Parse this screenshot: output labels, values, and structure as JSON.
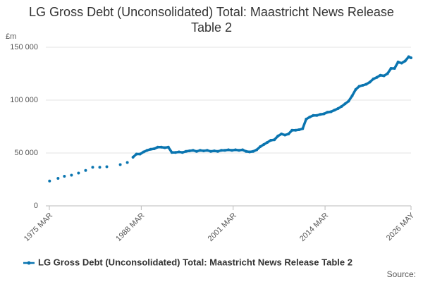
{
  "chart_data": {
    "type": "scatter-line",
    "title": "LG Gross Debt (Unconsolidated) Total: Maastricht News Release Table 2",
    "y_label": "£m",
    "source": "Source:",
    "xlim": [
      1975.17,
      2026.33
    ],
    "xticks": [
      {
        "value": 1975.17,
        "label": "1975 MAR"
      },
      {
        "value": 1988.17,
        "label": "1988 MAR"
      },
      {
        "value": 2001.17,
        "label": "2001 MAR"
      },
      {
        "value": 2014.17,
        "label": "2014 MAR"
      },
      {
        "value": 2026.33,
        "label": "2026 MAY"
      }
    ],
    "ylim": [
      0,
      150000
    ],
    "yticks": [
      0,
      {
        "value": 50000,
        "label": "50 000"
      },
      {
        "value": 100000,
        "label": "100 000"
      },
      {
        "value": 150000,
        "label": "150 000"
      }
    ],
    "grid": true,
    "legend": "bottom",
    "x": [
      1975.2,
      1976.4,
      1977.3,
      1978.3,
      1979.3,
      1980.3,
      1981.3,
      1982.3,
      1983.3,
      1985.2,
      1986.2,
      1987.0,
      1987.5,
      1988.0,
      1988.5,
      1989.0,
      1989.5,
      1990.0,
      1990.5,
      1991.0,
      1991.5,
      1992.0,
      1992.5,
      1993.0,
      1993.5,
      1994.0,
      1994.5,
      1995.0,
      1995.5,
      1996.0,
      1996.5,
      1997.0,
      1997.5,
      1998.0,
      1998.5,
      1999.0,
      1999.5,
      2000.0,
      2000.5,
      2001.0,
      2001.5,
      2002.0,
      2002.5,
      2003.0,
      2003.5,
      2004.0,
      2004.5,
      2005.0,
      2005.5,
      2006.0,
      2006.5,
      2007.0,
      2007.5,
      2008.0,
      2008.5,
      2009.0,
      2009.5,
      2010.0,
      2010.5,
      2011.0,
      2011.5,
      2012.0,
      2012.5,
      2013.0,
      2013.5,
      2014.0,
      2014.5,
      2015.0,
      2015.5,
      2016.0,
      2016.5,
      2017.0,
      2017.5,
      2018.0,
      2018.5,
      2019.0,
      2019.5,
      2020.0,
      2020.5,
      2021.0,
      2021.5,
      2022.0,
      2022.5,
      2023.0,
      2023.5,
      2024.0,
      2024.5,
      2025.0,
      2025.5,
      2026.0,
      2026.33
    ],
    "series": [
      {
        "name": "LG Gross Debt (Unconsolidated) Total: Maastricht News Release Table 2",
        "color": "#0a75b0",
        "values": [
          23500,
          26000,
          28000,
          29000,
          31000,
          33500,
          36500,
          36500,
          37000,
          39000,
          41000,
          46000,
          49000,
          49000,
          51000,
          52500,
          53500,
          54000,
          55500,
          55500,
          55000,
          55500,
          50500,
          50500,
          51000,
          50500,
          51500,
          52000,
          52500,
          51500,
          52500,
          52000,
          52500,
          51500,
          52000,
          51500,
          52500,
          52500,
          53000,
          52500,
          53000,
          52500,
          53000,
          51500,
          51000,
          51500,
          53000,
          56000,
          58000,
          60000,
          62000,
          62500,
          66000,
          68000,
          67000,
          68000,
          71500,
          71500,
          72000,
          73000,
          82000,
          84000,
          85500,
          85500,
          86500,
          87000,
          88500,
          89000,
          90500,
          92000,
          94000,
          96500,
          99000,
          104000,
          110000,
          113000,
          114000,
          115000,
          117000,
          120000,
          121500,
          123500,
          123000,
          125000,
          130000,
          130000,
          136000,
          135000,
          137000,
          141000,
          140000
        ]
      }
    ]
  }
}
